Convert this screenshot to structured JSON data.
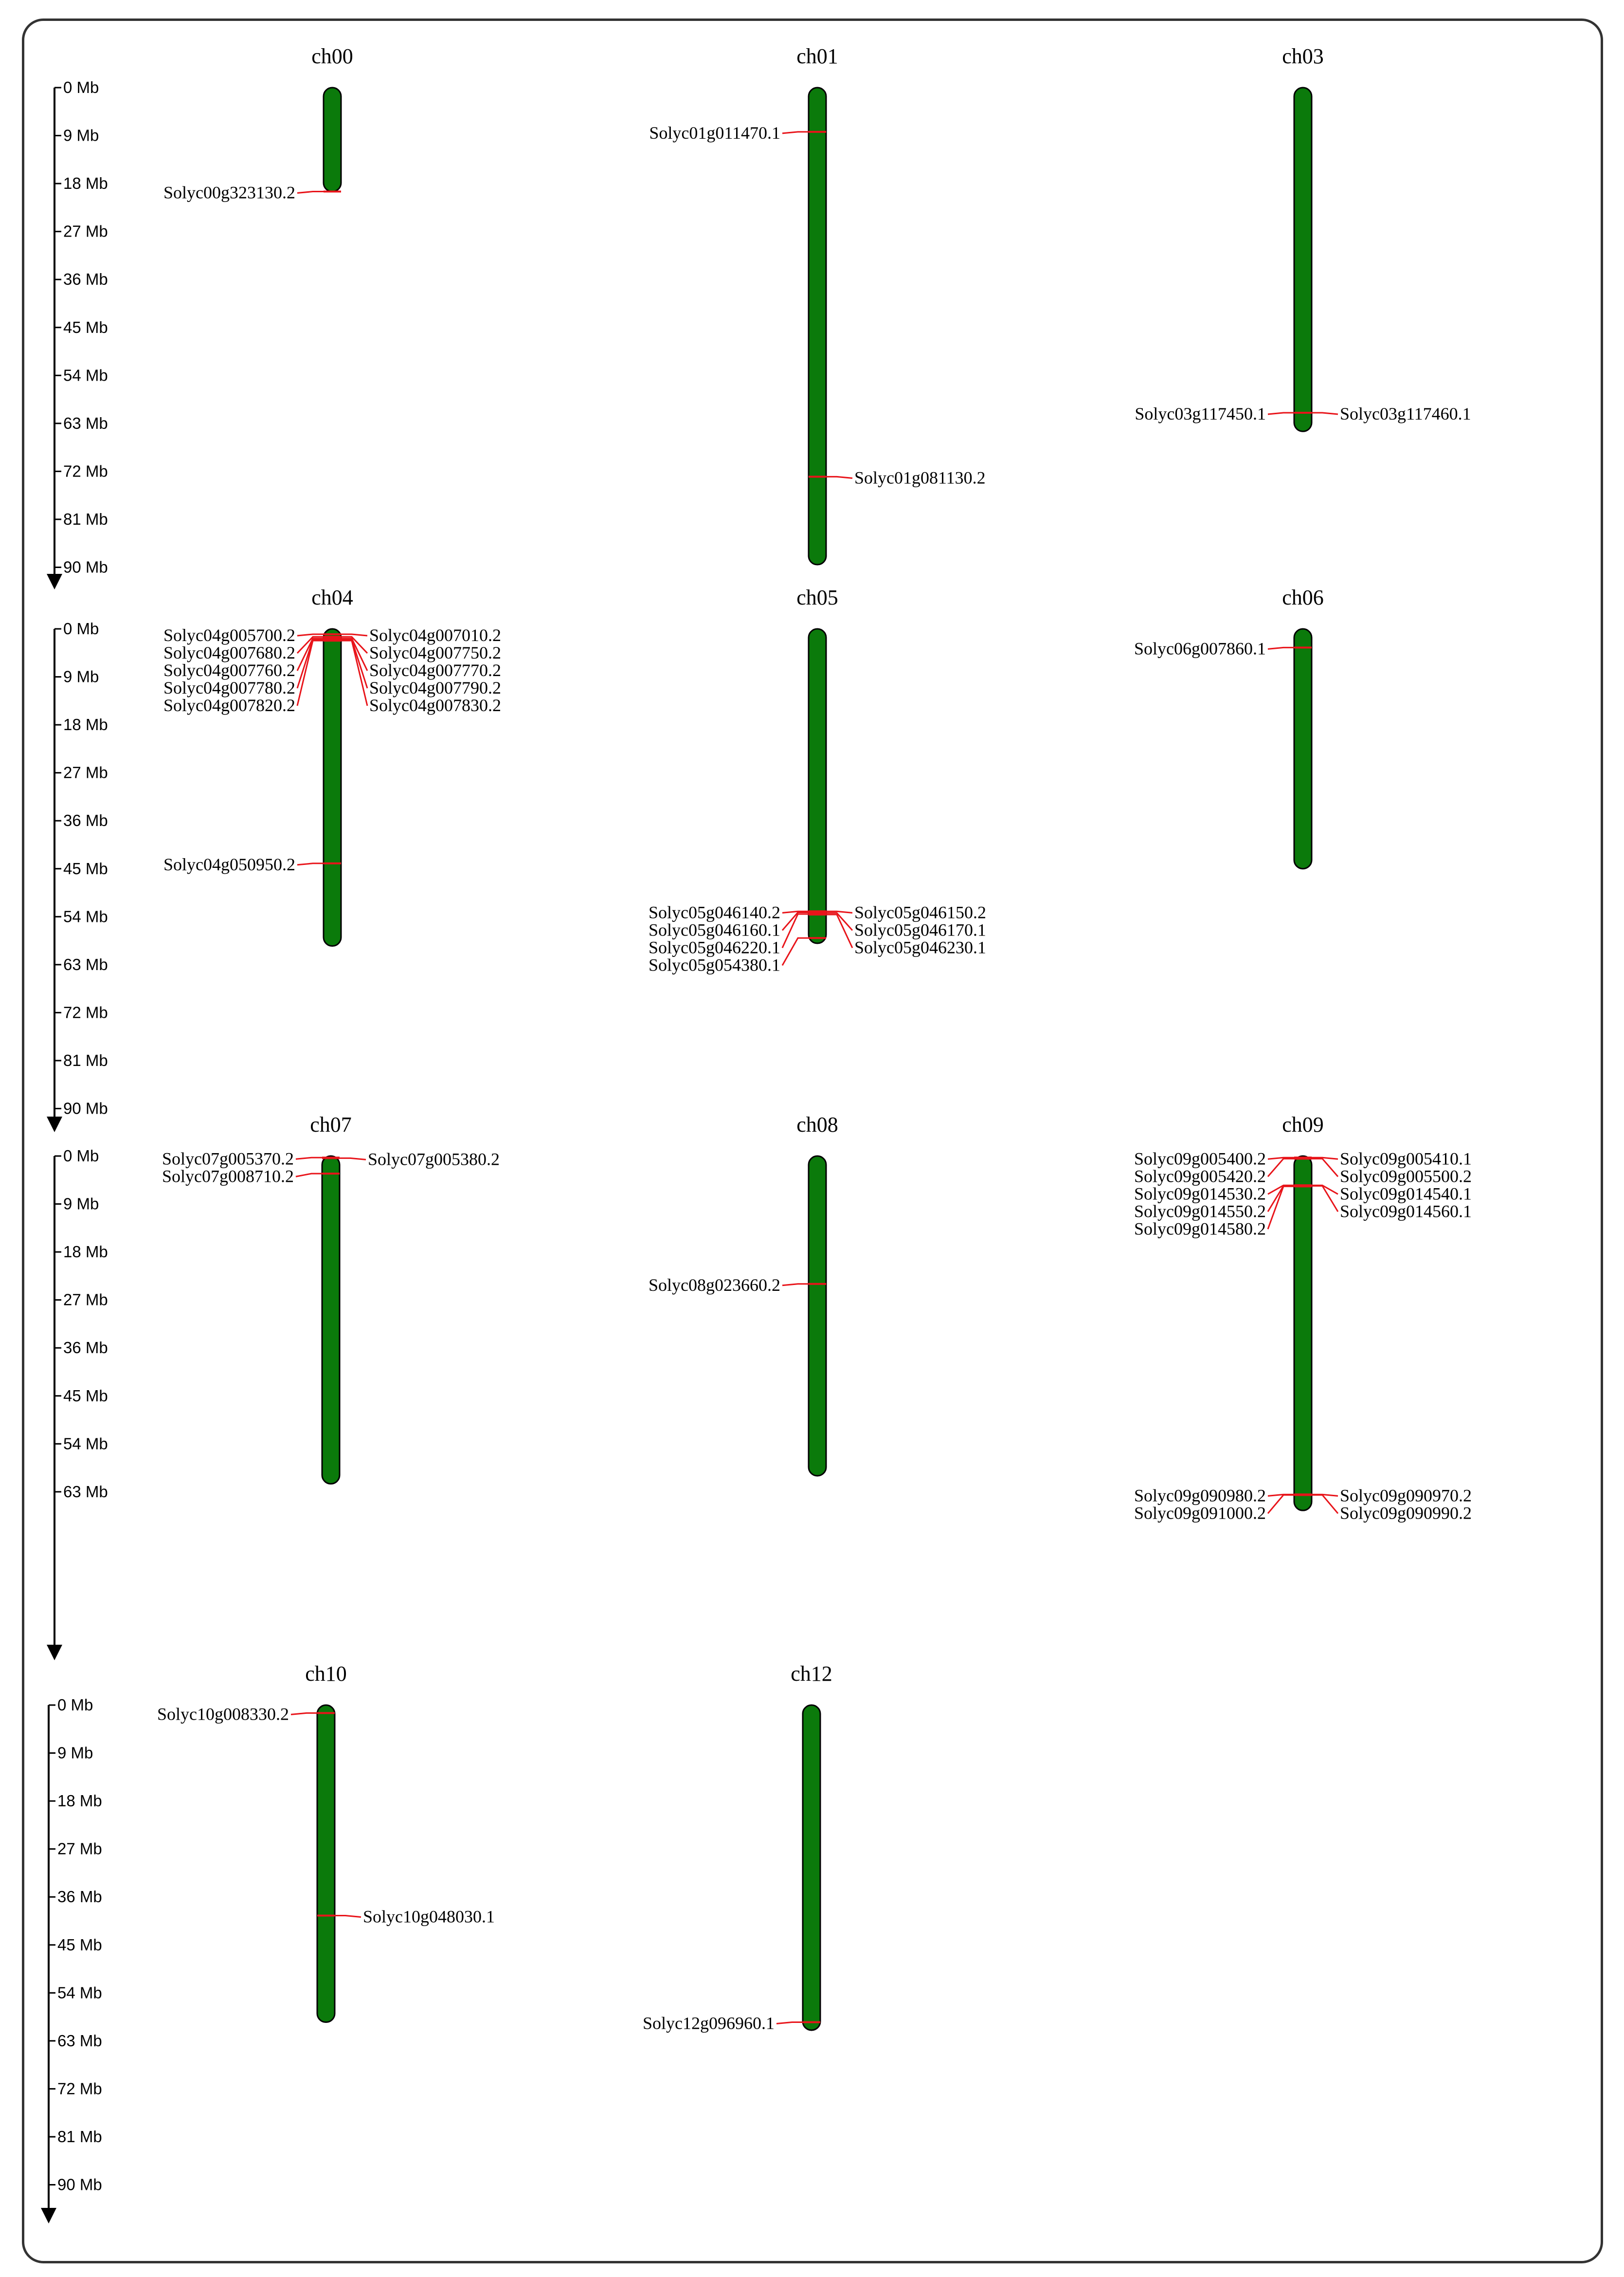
{
  "diagram": {
    "type": "chromosome-map",
    "scale": {
      "unit": "Mb",
      "tick_labels": [
        "0 Mb",
        "9 Mb",
        "18 Mb",
        "27 Mb",
        "36 Mb",
        "45 Mb",
        "54 Mb",
        "63 Mb",
        "72 Mb",
        "81 Mb",
        "90 Mb"
      ]
    },
    "colors": {
      "chromosome_fill": "#0b7a0b",
      "gene_marker": "#e8141a",
      "outline": "#000000"
    },
    "chromosomes": [
      {
        "name": "ch00",
        "length_mb": 19.5,
        "left": [
          {
            "id": "Solyc00g323130.2",
            "pos_mb": 19.5
          }
        ],
        "right": []
      },
      {
        "name": "ch01",
        "length_mb": 89.5,
        "left": [
          {
            "id": "Solyc01g011470.1",
            "pos_mb": 8.3
          }
        ],
        "right": [
          {
            "id": "Solyc01g081130.2",
            "pos_mb": 73.0
          }
        ]
      },
      {
        "name": "ch03",
        "length_mb": 64.5,
        "left": [
          {
            "id": "Solyc03g117450.1",
            "pos_mb": 61.0
          }
        ],
        "right": [
          {
            "id": "Solyc03g117460.1",
            "pos_mb": 61.0
          }
        ]
      },
      {
        "name": "ch04",
        "length_mb": 59.5,
        "left": [
          {
            "id": "Solyc04g005700.2",
            "pos_mb": 1.0
          },
          {
            "id": "Solyc04g007680.2",
            "pos_mb": 1.5
          },
          {
            "id": "Solyc04g007760.2",
            "pos_mb": 1.8
          },
          {
            "id": "Solyc04g007780.2",
            "pos_mb": 2.0
          },
          {
            "id": "Solyc04g007820.2",
            "pos_mb": 2.2
          },
          {
            "id": "Solyc04g050950.2",
            "pos_mb": 44.0
          }
        ],
        "right": [
          {
            "id": "Solyc04g007010.2",
            "pos_mb": 1.0
          },
          {
            "id": "Solyc04g007750.2",
            "pos_mb": 1.5
          },
          {
            "id": "Solyc04g007770.2",
            "pos_mb": 1.8
          },
          {
            "id": "Solyc04g007790.2",
            "pos_mb": 2.0
          },
          {
            "id": "Solyc04g007830.2",
            "pos_mb": 2.2
          }
        ]
      },
      {
        "name": "ch05",
        "length_mb": 59.0,
        "left": [
          {
            "id": "Solyc05g046140.2",
            "pos_mb": 53.0
          },
          {
            "id": "Solyc05g046160.1",
            "pos_mb": 53.2
          },
          {
            "id": "Solyc05g046220.1",
            "pos_mb": 53.5
          },
          {
            "id": "Solyc05g054380.1",
            "pos_mb": 58.0
          }
        ],
        "right": [
          {
            "id": "Solyc05g046150.2",
            "pos_mb": 53.0
          },
          {
            "id": "Solyc05g046170.1",
            "pos_mb": 53.3
          },
          {
            "id": "Solyc05g046230.1",
            "pos_mb": 53.6
          }
        ]
      },
      {
        "name": "ch06",
        "length_mb": 45.0,
        "left": [
          {
            "id": "Solyc06g007860.1",
            "pos_mb": 3.5
          }
        ],
        "right": []
      },
      {
        "name": "ch07",
        "length_mb": 61.5,
        "left": [
          {
            "id": "Solyc07g005370.2",
            "pos_mb": 0.3
          },
          {
            "id": "Solyc07g008710.2",
            "pos_mb": 3.3
          }
        ],
        "right": [
          {
            "id": "Solyc07g005380.2",
            "pos_mb": 0.4
          }
        ]
      },
      {
        "name": "ch08",
        "length_mb": 60.0,
        "left": [
          {
            "id": "Solyc08g023660.2",
            "pos_mb": 24.0
          }
        ],
        "right": []
      },
      {
        "name": "ch09",
        "length_mb": 66.5,
        "left": [
          {
            "id": "Solyc09g005400.2",
            "pos_mb": 0.3
          },
          {
            "id": "Solyc09g005420.2",
            "pos_mb": 0.5
          },
          {
            "id": "Solyc09g014530.2",
            "pos_mb": 5.5
          },
          {
            "id": "Solyc09g014550.2",
            "pos_mb": 5.6
          },
          {
            "id": "Solyc09g014580.2",
            "pos_mb": 5.7
          },
          {
            "id": "Solyc09g090980.2",
            "pos_mb": 63.5
          },
          {
            "id": "Solyc09g091000.2",
            "pos_mb": 63.6
          }
        ],
        "right": [
          {
            "id": "Solyc09g005410.1",
            "pos_mb": 0.3
          },
          {
            "id": "Solyc09g005500.2",
            "pos_mb": 0.5
          },
          {
            "id": "Solyc09g014540.1",
            "pos_mb": 5.5
          },
          {
            "id": "Solyc09g014560.1",
            "pos_mb": 5.6
          },
          {
            "id": "Solyc09g090970.2",
            "pos_mb": 63.5
          },
          {
            "id": "Solyc09g090990.2",
            "pos_mb": 63.6
          }
        ]
      },
      {
        "name": "ch10",
        "length_mb": 59.5,
        "left": [
          {
            "id": "Solyc10g008330.2",
            "pos_mb": 1.5
          }
        ],
        "right": [
          {
            "id": "Solyc10g048030.1",
            "pos_mb": 39.5
          }
        ]
      },
      {
        "name": "ch12",
        "length_mb": 61.0,
        "left": [
          {
            "id": "Solyc12g096960.1",
            "pos_mb": 59.5
          }
        ],
        "right": []
      }
    ]
  }
}
